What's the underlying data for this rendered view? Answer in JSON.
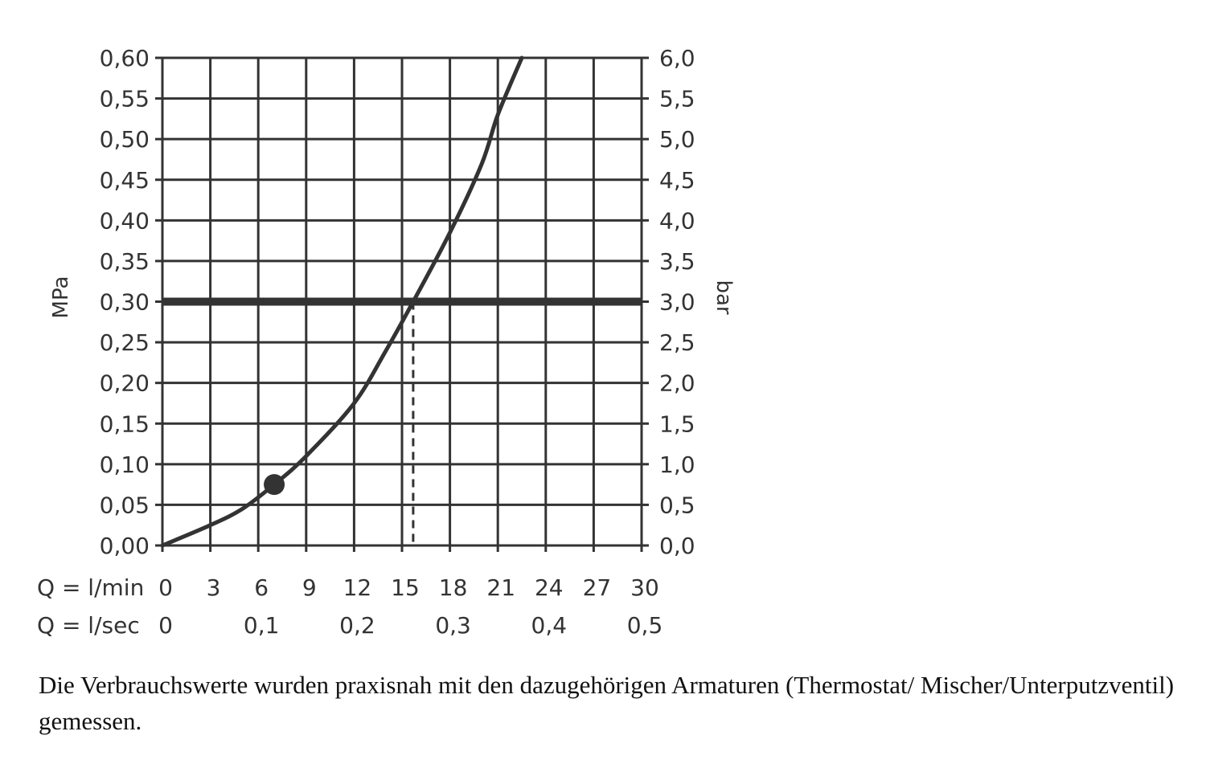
{
  "chart_data": {
    "type": "line",
    "xlabel": "Q = l/min",
    "xlabel_secondary": "Q = l/sec",
    "ylabel": "MPa",
    "ylabel_right": "bar",
    "xlim": [
      0,
      30
    ],
    "ylim": [
      0,
      0.6
    ],
    "ylim_right": [
      0,
      6
    ],
    "grid": true,
    "x_ticks": [
      "0",
      "3",
      "6",
      "9",
      "12",
      "15",
      "18",
      "21",
      "24",
      "27",
      "30"
    ],
    "x_ticks_values": [
      0,
      3,
      6,
      9,
      12,
      15,
      18,
      21,
      24,
      27,
      30
    ],
    "x_secondary_ticks": [
      {
        "label": "0",
        "at": 0
      },
      {
        "label": "0,1",
        "at": 6
      },
      {
        "label": "0,2",
        "at": 12
      },
      {
        "label": "0,3",
        "at": 18
      },
      {
        "label": "0,4",
        "at": 24
      },
      {
        "label": "0,5",
        "at": 30
      }
    ],
    "y_ticks": [
      "0,00",
      "0,05",
      "0,10",
      "0,15",
      "0,20",
      "0,25",
      "0,30",
      "0,35",
      "0,40",
      "0,45",
      "0,50",
      "0,55",
      "0,60"
    ],
    "y_ticks_values": [
      0,
      0.05,
      0.1,
      0.15,
      0.2,
      0.25,
      0.3,
      0.35,
      0.4,
      0.45,
      0.5,
      0.55,
      0.6
    ],
    "y_right_ticks": [
      "0,0",
      "0,5",
      "1,0",
      "1,5",
      "2,0",
      "2,5",
      "3,0",
      "3,5",
      "4,0",
      "4,5",
      "5,0",
      "5,5",
      "6,0"
    ],
    "series": [
      {
        "x": [
          0,
          3,
          5,
          7,
          9,
          12,
          14,
          15.7,
          18,
          20,
          21,
          22.5
        ],
        "y": [
          0,
          0.025,
          0.045,
          0.075,
          0.11,
          0.175,
          0.24,
          0.3,
          0.385,
          0.47,
          0.53,
          0.6
        ]
      }
    ],
    "reference_line": {
      "y": 0.3
    },
    "marker_point": {
      "x": 7,
      "y": 0.075
    },
    "dashed_drop_line": {
      "x": 15.7,
      "y_from": 0.3,
      "y_to": 0
    }
  },
  "caption": "Die Verbrauchswerte wurden praxisnah mit den dazugehörigen Armaturen (Thermostat/ Mischer/Unterputzventil) gemessen."
}
